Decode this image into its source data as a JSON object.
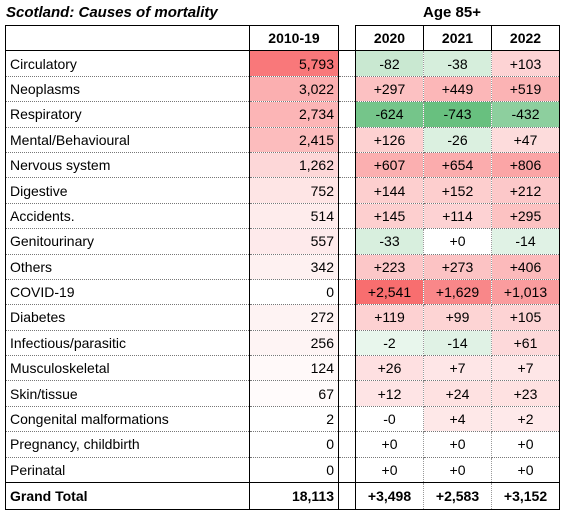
{
  "title": "Scotland: Causes of mortality",
  "age_group": "Age 85+",
  "headers": {
    "base": "2010-19",
    "years": [
      "2020",
      "2021",
      "2022"
    ]
  },
  "colors": {
    "neg": "#63be7b",
    "pos": "#f8696b"
  },
  "rows": [
    {
      "name": "Circulatory",
      "base": "5,793",
      "base_v": 5793,
      "years": [
        {
          "t": "-82",
          "v": -82
        },
        {
          "t": "-38",
          "v": -38
        },
        {
          "t": "+103",
          "v": 103
        }
      ]
    },
    {
      "name": "Neoplasms",
      "base": "3,022",
      "base_v": 3022,
      "years": [
        {
          "t": "+297",
          "v": 297
        },
        {
          "t": "+449",
          "v": 449
        },
        {
          "t": "+519",
          "v": 519
        }
      ]
    },
    {
      "name": "Respiratory",
      "base": "2,734",
      "base_v": 2734,
      "years": [
        {
          "t": "-624",
          "v": -624
        },
        {
          "t": "-743",
          "v": -743
        },
        {
          "t": "-432",
          "v": -432
        }
      ]
    },
    {
      "name": "Mental/Behavioural",
      "base": "2,415",
      "base_v": 2415,
      "years": [
        {
          "t": "+126",
          "v": 126
        },
        {
          "t": "-26",
          "v": -26
        },
        {
          "t": "+47",
          "v": 47
        }
      ]
    },
    {
      "name": "Nervous system",
      "base": "1,262",
      "base_v": 1262,
      "years": [
        {
          "t": "+607",
          "v": 607
        },
        {
          "t": "+654",
          "v": 654
        },
        {
          "t": "+806",
          "v": 806
        }
      ]
    },
    {
      "name": "Digestive",
      "base": "752",
      "base_v": 752,
      "years": [
        {
          "t": "+144",
          "v": 144
        },
        {
          "t": "+152",
          "v": 152
        },
        {
          "t": "+212",
          "v": 212
        }
      ]
    },
    {
      "name": "Accidents.",
      "base": "514",
      "base_v": 514,
      "years": [
        {
          "t": "+145",
          "v": 145
        },
        {
          "t": "+114",
          "v": 114
        },
        {
          "t": "+295",
          "v": 295
        }
      ]
    },
    {
      "name": "Genitourinary",
      "base": "557",
      "base_v": 557,
      "years": [
        {
          "t": "-33",
          "v": -33
        },
        {
          "t": "+0",
          "v": 0
        },
        {
          "t": "-14",
          "v": -14
        }
      ]
    },
    {
      "name": "Others",
      "base": "342",
      "base_v": 342,
      "years": [
        {
          "t": "+223",
          "v": 223
        },
        {
          "t": "+273",
          "v": 273
        },
        {
          "t": "+406",
          "v": 406
        }
      ]
    },
    {
      "name": "COVID-19",
      "base": "0",
      "base_v": 0,
      "years": [
        {
          "t": "+2,541",
          "v": 2541
        },
        {
          "t": "+1,629",
          "v": 1629
        },
        {
          "t": "+1,013",
          "v": 1013
        }
      ]
    },
    {
      "name": "Diabetes",
      "base": "272",
      "base_v": 272,
      "years": [
        {
          "t": "+119",
          "v": 119
        },
        {
          "t": "+99",
          "v": 99
        },
        {
          "t": "+105",
          "v": 105
        }
      ]
    },
    {
      "name": "Infectious/parasitic",
      "base": "256",
      "base_v": 256,
      "years": [
        {
          "t": "-2",
          "v": -2
        },
        {
          "t": "-14",
          "v": -14
        },
        {
          "t": "+61",
          "v": 61
        }
      ]
    },
    {
      "name": "Musculoskeletal",
      "base": "124",
      "base_v": 124,
      "years": [
        {
          "t": "+26",
          "v": 26
        },
        {
          "t": "+7",
          "v": 7
        },
        {
          "t": "+7",
          "v": 7
        }
      ]
    },
    {
      "name": "Skin/tissue",
      "base": "67",
      "base_v": 67,
      "years": [
        {
          "t": "+12",
          "v": 12
        },
        {
          "t": "+24",
          "v": 24
        },
        {
          "t": "+23",
          "v": 23
        }
      ]
    },
    {
      "name": "Congenital malformations",
      "base": "2",
      "base_v": 2,
      "years": [
        {
          "t": "-0",
          "v": 0
        },
        {
          "t": "+4",
          "v": 4
        },
        {
          "t": "+2",
          "v": 2
        }
      ]
    },
    {
      "name": "Pregnancy, childbirth",
      "base": "0",
      "base_v": 0,
      "years": [
        {
          "t": "+0",
          "v": 0
        },
        {
          "t": "+0",
          "v": 0
        },
        {
          "t": "+0",
          "v": 0
        }
      ]
    },
    {
      "name": "Perinatal",
      "base": "0",
      "base_v": 0,
      "years": [
        {
          "t": "+0",
          "v": 0
        },
        {
          "t": "+0",
          "v": 0
        },
        {
          "t": "+0",
          "v": 0
        }
      ]
    }
  ],
  "total": {
    "name": "Grand Total",
    "base": "18,113",
    "years": [
      "+3,498",
      "+2,583",
      "+3,152"
    ]
  }
}
